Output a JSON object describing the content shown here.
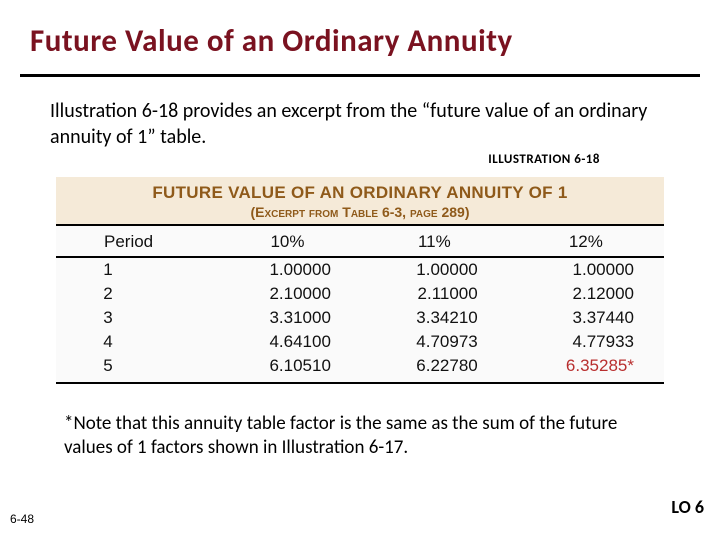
{
  "title": "Future Value of an Ordinary Annuity",
  "intro": "Illustration 6-18 provides an excerpt from the  “future value of an ordinary annuity of 1”  table.",
  "illus_label": "ILLUSTRATION 6-18",
  "table": {
    "title_line1": "FUTURE VALUE OF AN ORDINARY ANNUITY OF 1",
    "title_line2_a": "(E",
    "title_line2_b": "xcerpt from ",
    "title_line2_c": "T",
    "title_line2_d": "able",
    "title_line2_e": " 6-3, ",
    "title_line2_f": "page",
    "title_line2_g": " 289)",
    "headers": {
      "period": "Period",
      "c1": "10%",
      "c2": "11%",
      "c3": "12%"
    },
    "rows": [
      {
        "p": "1",
        "c1": "1.00000",
        "c2": "1.00000",
        "c3": "1.00000"
      },
      {
        "p": "2",
        "c1": "2.10000",
        "c2": "2.11000",
        "c3": "2.12000"
      },
      {
        "p": "3",
        "c1": "3.31000",
        "c2": "3.34210",
        "c3": "3.37440"
      },
      {
        "p": "4",
        "c1": "4.64100",
        "c2": "4.70973",
        "c3": "4.77933"
      },
      {
        "p": "5",
        "c1": "6.10510",
        "c2": "6.22780",
        "c3": "6.35285*"
      }
    ],
    "highlight_cell": {
      "row": 4,
      "col": "c3"
    },
    "colors": {
      "header_bg": "#f5ead8",
      "header_text": "#8f5a1a",
      "rule": "#000000",
      "highlight": "#b82e2e"
    }
  },
  "footnote": "*Note that this annuity table factor is the same as the sum of the future values of 1 factors shown in Illustration 6-17.",
  "page_num": "6-48",
  "lo": "LO 6"
}
